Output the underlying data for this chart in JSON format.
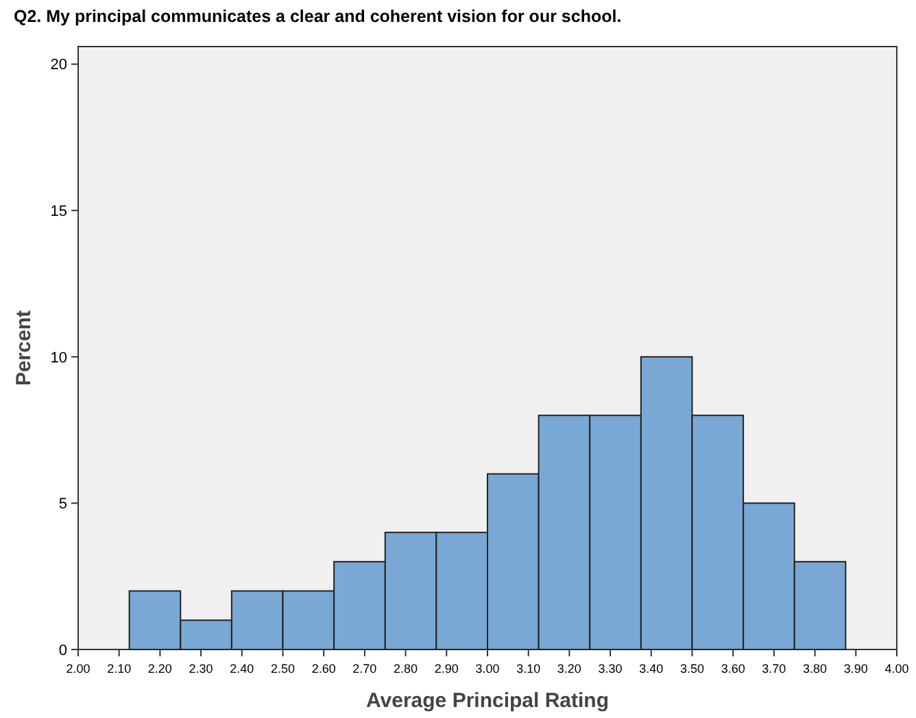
{
  "chart_data": {
    "type": "histogram",
    "title": "Q2. My principal communicates a clear and coherent vision for our school.",
    "xlabel": "Average Principal Rating",
    "ylabel": "Percent",
    "bins": [
      2.125,
      2.25,
      2.375,
      2.5,
      2.625,
      2.75,
      2.875,
      3.0,
      3.125,
      3.25,
      3.375,
      3.5,
      3.625,
      3.75,
      3.875
    ],
    "values": [
      2,
      1,
      2,
      2,
      3,
      4,
      4,
      6,
      8,
      8,
      10,
      8,
      5,
      3
    ],
    "color": "#79a8d4",
    "xlim": [
      2.0,
      4.0
    ],
    "xticks": [
      {
        "value": 2.0,
        "label": "2.00"
      },
      {
        "value": 2.1,
        "label": "2.10"
      },
      {
        "value": 2.2,
        "label": "2.20"
      },
      {
        "value": 2.3,
        "label": "2.30"
      },
      {
        "value": 2.4,
        "label": "2.40"
      },
      {
        "value": 2.5,
        "label": "2.50"
      },
      {
        "value": 2.6,
        "label": "2.60"
      },
      {
        "value": 2.7,
        "label": "2.70"
      },
      {
        "value": 2.8,
        "label": "2.80"
      },
      {
        "value": 2.9,
        "label": "2.90"
      },
      {
        "value": 3.0,
        "label": "3.00"
      },
      {
        "value": 3.1,
        "label": "3.10"
      },
      {
        "value": 3.2,
        "label": "3.20"
      },
      {
        "value": 3.3,
        "label": "3.30"
      },
      {
        "value": 3.4,
        "label": "3.40"
      },
      {
        "value": 3.5,
        "label": "3.50"
      },
      {
        "value": 3.6,
        "label": "3.60"
      },
      {
        "value": 3.7,
        "label": "3.70"
      },
      {
        "value": 3.8,
        "label": "3.80"
      },
      {
        "value": 3.9,
        "label": "3.90"
      },
      {
        "value": 4.0,
        "label": "4.00"
      }
    ],
    "ylim": [
      0,
      20.6
    ],
    "yticks": [
      0,
      5,
      10,
      15,
      20
    ],
    "grid": false
  }
}
